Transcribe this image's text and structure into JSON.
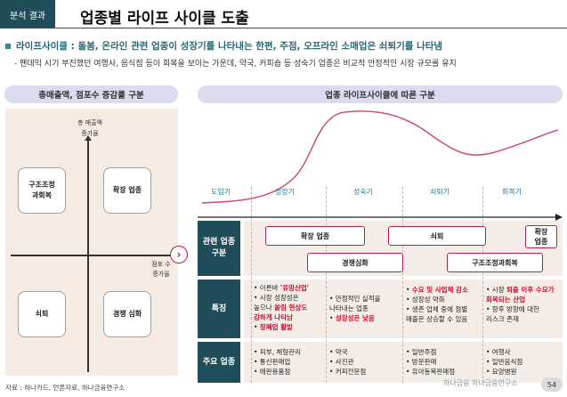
{
  "header": {
    "section_tag": "분석 결과",
    "title": "업종별 라이프 사이클 도출"
  },
  "summary": {
    "headline": "라이프사이클 : 돌봄, 온라인 관련 업종이 성장기를 나타내는 한편, 주점, 오프라인 소매업은 쇠퇴기를 나타냄",
    "detail": "- 팬데믹 시기 부진했던 여행사, 음식점 등이 회복을 보이는 가운데, 약국, 커피숍 등 성숙기 업종은 비교적 안정적인 시장 규모를 유지"
  },
  "left_panel": {
    "title": "총매출액, 점포수 증감률 구분",
    "y_axis_label": "총 매출액\n증가율",
    "x_axis_label": "점포 수\n증가율",
    "quadrants": {
      "top_left": "구조조정\n과회복",
      "top_right": "확장 업종",
      "bottom_left": "쇠퇴",
      "bottom_right": "경쟁 심화"
    }
  },
  "right_panel": {
    "title": "업종 라이프사이클에 따른 구분",
    "stages": [
      "도입기",
      "성장기",
      "성숙기",
      "쇠퇴기",
      "회복기"
    ],
    "row_labels": {
      "related": "관련 업종\n구분",
      "features": "특징",
      "industries": "주요 업종"
    },
    "tags": {
      "expansion": "확장 업종",
      "decline": "쇠퇴",
      "recovery_expansion": "확장\n업종",
      "competition": "경쟁심화",
      "restructure": "구조조정과회복"
    },
    "features": {
      "growth": [
        {
          "pre": "• 이른바 ",
          "hl": "'유망산업'",
          "post": ""
        },
        {
          "pre": "• 시장 성장성은",
          "hl": "",
          "post": ""
        },
        {
          "pre": "  높으나 ",
          "hl": "쏠림 현상도",
          "post": ""
        },
        {
          "pre": "  ",
          "hl": "강하게 나타남",
          "post": ""
        },
        {
          "pre": "• ",
          "hl": "창폐업 활발",
          "post": ""
        }
      ],
      "maturity": [
        {
          "pre": "• 안정적인 실적을",
          "hl": "",
          "post": ""
        },
        {
          "pre": "  나타내는 업종",
          "hl": "",
          "post": ""
        },
        {
          "pre": "• ",
          "hl": "성장성은 낮음",
          "post": ""
        }
      ],
      "decline": [
        {
          "pre": "• ",
          "hl": "수요 및 사업체 감소",
          "post": ""
        },
        {
          "pre": "• 성장성 약화",
          "hl": "",
          "post": ""
        },
        {
          "pre": "• 생존 업체 중에 점별",
          "hl": "",
          "post": ""
        },
        {
          "pre": "  매출은 상승할 수 있음",
          "hl": "",
          "post": ""
        }
      ],
      "recovery": [
        {
          "pre": "• 시장 ",
          "hl": "퇴출 이후 수요가",
          "post": ""
        },
        {
          "pre": "  ",
          "hl": "회복되는 산업",
          "post": ""
        },
        {
          "pre": "• 향후 방향에 대한",
          "hl": "",
          "post": ""
        },
        {
          "pre": "  리스크 존재",
          "hl": "",
          "post": ""
        }
      ]
    },
    "industries": {
      "growth": [
        "• 피부, 체형관리",
        "• 통신판매업",
        "• 애완용품점"
      ],
      "maturity": [
        "• 약국",
        "• 사진관",
        "• 커피전문점"
      ],
      "decline": [
        "• 일반주점",
        "• 방문판매",
        "• 유아동복판매점"
      ],
      "recovery": [
        "• 여행사",
        "• 일반음식점",
        "• 요양병원"
      ]
    }
  },
  "footer": {
    "source": "자료 : 하나카드, 언론자료, 하나금융연구소",
    "logo": "하나금융 하나금융연구소",
    "page": "54"
  },
  "colors": {
    "header_dark": "#1f4e5a",
    "accent_red": "#c8102e",
    "curve": "#d0506e",
    "band": "#f4ece6"
  }
}
